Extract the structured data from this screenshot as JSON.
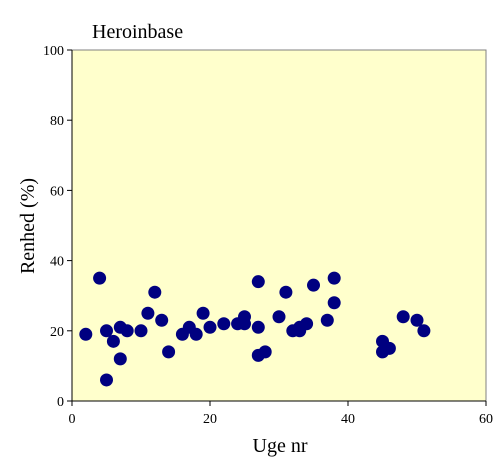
{
  "chart_data": {
    "type": "scatter",
    "title": "Heroinbase",
    "x_label": "Uge nr",
    "y_label": "Renhed (%)",
    "color": "#000080",
    "background": "#ffffcc",
    "x": [
      2,
      4,
      5,
      5,
      6,
      7,
      7,
      8,
      10,
      11,
      12,
      13,
      14,
      16,
      17,
      18,
      19,
      20,
      22,
      24,
      25,
      25,
      27,
      27,
      27,
      28,
      30,
      31,
      32,
      33,
      33,
      34,
      35,
      37,
      38,
      38,
      45,
      45,
      46,
      48,
      50,
      51
    ],
    "values": [
      19,
      35,
      20,
      6,
      17,
      21,
      12,
      20,
      20,
      25,
      31,
      23,
      14,
      19,
      21,
      19,
      25,
      21,
      22,
      22,
      24,
      22,
      34,
      21,
      13,
      14,
      24,
      31,
      20,
      20,
      21,
      22,
      33,
      23,
      35,
      28,
      17,
      14,
      15,
      24,
      23,
      20
    ],
    "xlim": [
      0,
      60
    ],
    "xticks": [
      0,
      20,
      40,
      60
    ],
    "ylim": [
      0,
      100
    ],
    "yticks": [
      0,
      20,
      40,
      60,
      80,
      100
    ]
  }
}
